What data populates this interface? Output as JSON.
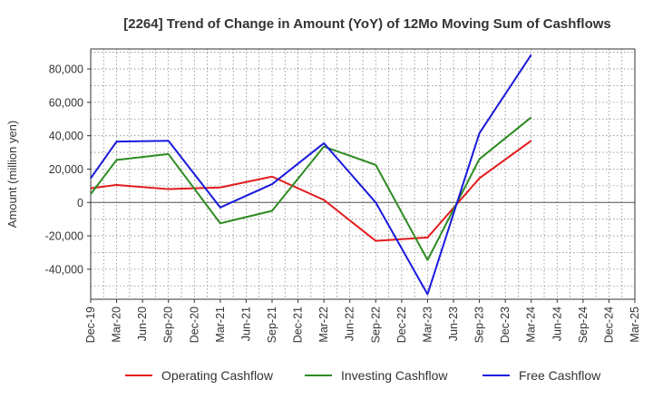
{
  "chart_data": {
    "type": "line",
    "title": "[2264]  Trend of Change in Amount (YoY) of 12Mo Moving Sum of Cashflows",
    "xlabel": "",
    "ylabel": "Amount (million yen)",
    "ylim": [
      -58000,
      92000
    ],
    "yticks": [
      -40000,
      -20000,
      0,
      20000,
      40000,
      60000,
      80000
    ],
    "ytick_labels": [
      "-40,000",
      "-20,000",
      "0",
      "20,000",
      "40,000",
      "60,000",
      "80,000"
    ],
    "grid": true,
    "legend_position": "bottom",
    "categories": [
      "Dec-19",
      "Mar-20",
      "Jun-20",
      "Sep-20",
      "Dec-20",
      "Mar-21",
      "Jun-21",
      "Sep-21",
      "Dec-21",
      "Mar-22",
      "Jun-22",
      "Sep-22",
      "Dec-22",
      "Mar-23",
      "Jun-23",
      "Sep-23",
      "Dec-23",
      "Mar-24",
      "Jun-24",
      "Sep-24",
      "Dec-24",
      "Mar-25"
    ],
    "series": [
      {
        "name": "Operating Cashflow",
        "color": "#e31a1c",
        "values": [
          8500,
          10500,
          null,
          8000,
          null,
          9000,
          null,
          15500,
          null,
          1500,
          null,
          -23000,
          null,
          -21000,
          null,
          14500,
          null,
          37000,
          null,
          null,
          null,
          null
        ]
      },
      {
        "name": "Investing Cashflow",
        "color": "#2e8b22",
        "values": [
          5000,
          25500,
          null,
          29000,
          null,
          -12500,
          null,
          -5000,
          null,
          33500,
          null,
          22500,
          null,
          -34500,
          null,
          26000,
          null,
          51000,
          null,
          null,
          null,
          null
        ]
      },
      {
        "name": "Free Cashflow",
        "color": "#1a1adc",
        "values": [
          14500,
          36500,
          null,
          37000,
          null,
          -3000,
          null,
          11000,
          null,
          35500,
          null,
          0,
          null,
          -55000,
          null,
          41500,
          null,
          88500,
          null,
          null,
          null,
          null
        ]
      }
    ]
  }
}
